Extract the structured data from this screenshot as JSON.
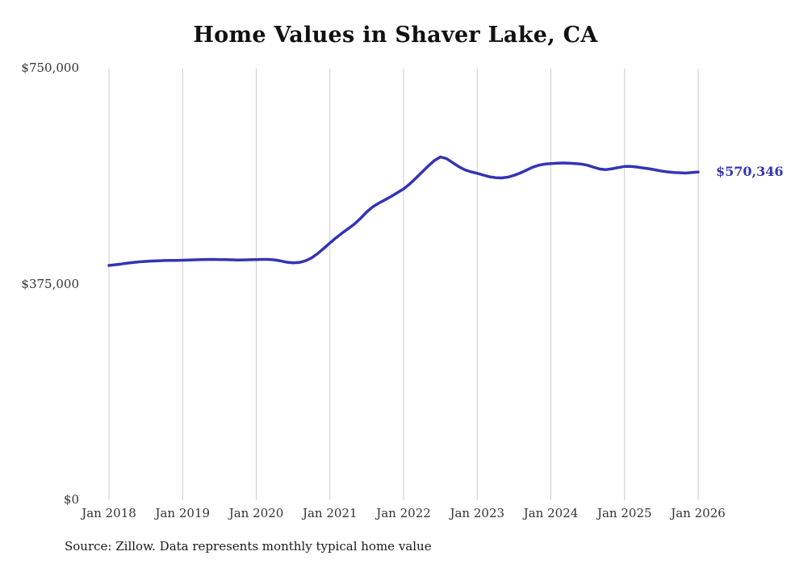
{
  "title": "Home Values in Shaver Lake, CA",
  "source_note": "Source: Zillow. Data represents monthly typical home value",
  "chart_data": {
    "type": "line",
    "title": "Home Values in Shaver Lake, CA",
    "xlabel": "",
    "ylabel": "",
    "ylim": [
      0,
      750000
    ],
    "grid": "vertical-only",
    "line_color": "#3434b4",
    "grid_color": "#cccccc",
    "x_tick_labels": [
      "Jan 2018",
      "Jan 2019",
      "Jan 2020",
      "Jan 2021",
      "Jan 2022",
      "Jan 2023",
      "Jan 2024",
      "Jan 2025",
      "Jan 2026"
    ],
    "y_ticks": [
      {
        "value": 0,
        "label": "$0"
      },
      {
        "value": 375000,
        "label": "$375,000"
      },
      {
        "value": 750000,
        "label": "$750,000"
      }
    ],
    "annotation": {
      "text": "$570,346",
      "value": 570346,
      "position": "end-of-line"
    },
    "series": [
      {
        "name": "Monthly typical home value",
        "start_month": "2018-01",
        "end_month": "2026-01",
        "frequency": "monthly",
        "values": [
          408000,
          409200,
          410500,
          412000,
          413200,
          414200,
          415000,
          415600,
          416100,
          416500,
          416600,
          416800,
          417000,
          417400,
          417800,
          418000,
          418300,
          418400,
          418200,
          418000,
          417700,
          417500,
          417600,
          417900,
          418200,
          418500,
          418400,
          417600,
          415800,
          413600,
          412500,
          413200,
          416000,
          421000,
          428500,
          437500,
          447000,
          456000,
          464500,
          472000,
          480000,
          490000,
          501000,
          510000,
          516500,
          522000,
          528000,
          534500,
          541000,
          549500,
          559500,
          570000,
          580500,
          590000,
          596500,
          593500,
          586500,
          579500,
          574000,
          570500,
          568000,
          565000,
          562000,
          560500,
          560000,
          561500,
          564500,
          568500,
          573500,
          578500,
          582000,
          584000,
          585000,
          585500,
          586000,
          585500,
          585000,
          584000,
          582000,
          578500,
          575500,
          574500,
          576000,
          578000,
          580000,
          580000,
          579000,
          577500,
          576000,
          574000,
          572000,
          570500,
          569500,
          569000,
          568500,
          569500,
          570346
        ]
      }
    ]
  }
}
